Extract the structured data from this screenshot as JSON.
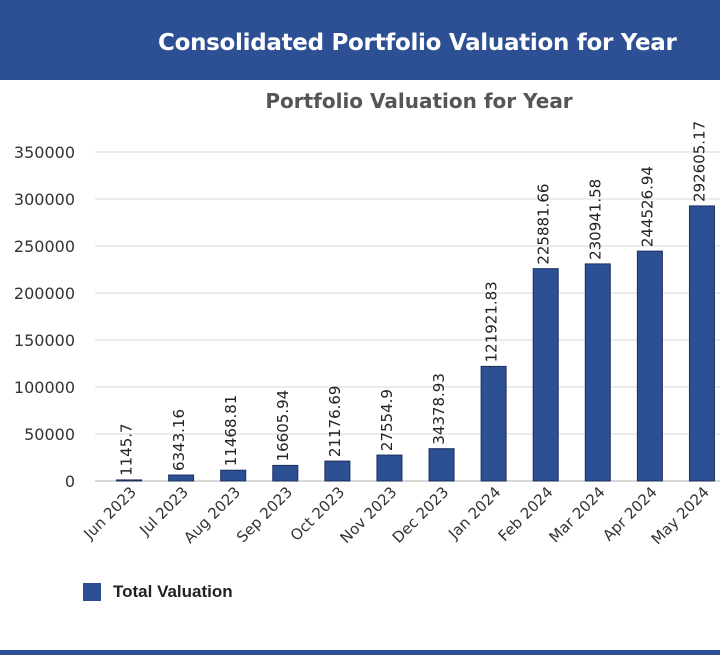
{
  "header": {
    "title": "Consolidated Portfolio Valuation for Year"
  },
  "colors": {
    "header_bg": "#2d4f93",
    "bar": "#2d4f93",
    "grid": "#d9d9d9"
  },
  "chart_data": {
    "type": "bar",
    "title": "Portfolio Valuation for Year",
    "xlabel": "",
    "ylabel": "",
    "ylim": [
      0,
      350000
    ],
    "y_ticks": [
      0,
      50000,
      100000,
      150000,
      200000,
      250000,
      300000,
      350000
    ],
    "grid": true,
    "legend_position": "bottom-left",
    "categories": [
      "Jun 2023",
      "Jul 2023",
      "Aug 2023",
      "Sep 2023",
      "Oct 2023",
      "Nov 2023",
      "Dec 2023",
      "Jan 2024",
      "Feb 2024",
      "Mar 2024",
      "Apr 2024",
      "May 2024"
    ],
    "series": [
      {
        "name": "Total Valuation",
        "color": "#2d4f93",
        "values": [
          1145.7,
          6343.16,
          11468.81,
          16605.94,
          21176.69,
          27554.9,
          34378.93,
          121921.83,
          225881.66,
          230941.58,
          244526.94,
          292605.17
        ],
        "labels": [
          "1145.7",
          "6343.16",
          "11468.81",
          "16605.94",
          "21176.69",
          "27554.9",
          "34378.93",
          "121921.83",
          "225881.66",
          "230941.58",
          "244526.94",
          "292605.17"
        ]
      }
    ]
  }
}
